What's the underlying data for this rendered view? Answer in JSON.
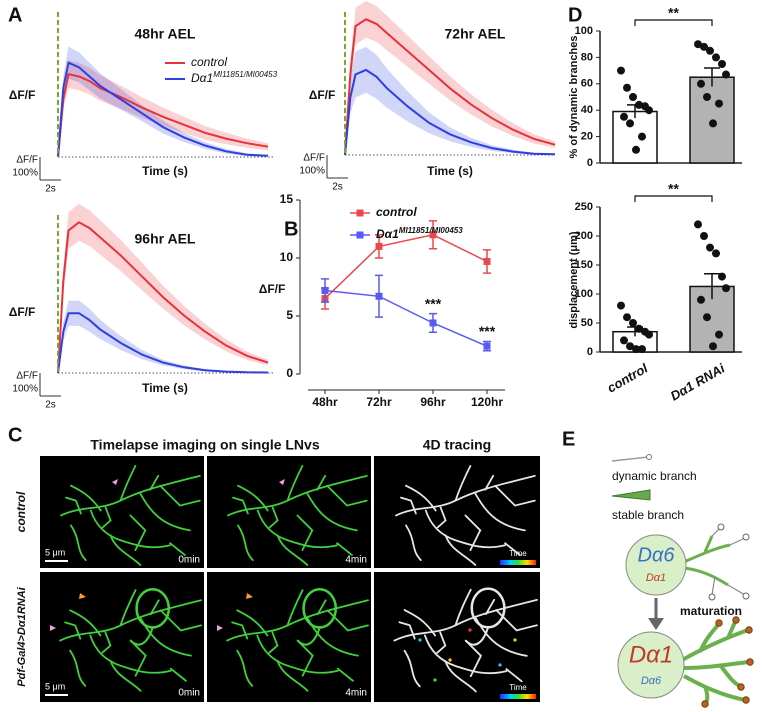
{
  "panel_labels": [
    "A",
    "B",
    "C",
    "D",
    "E"
  ],
  "chart_data": [
    {
      "type": "line",
      "title": "48hr AEL",
      "y_label": "ΔF/F",
      "x_label": "Time (s)",
      "x": [
        0,
        0.5,
        1,
        2,
        3,
        4,
        6,
        8,
        10,
        12,
        14,
        16,
        18,
        20
      ],
      "series": [
        {
          "name": "control",
          "color": "#e8313a",
          "values": [
            0,
            250,
            360,
            350,
            330,
            300,
            260,
            215,
            175,
            140,
            105,
            80,
            60,
            45
          ],
          "error": [
            0,
            40,
            60,
            60,
            58,
            55,
            50,
            45,
            40,
            35,
            30,
            25,
            20,
            15
          ]
        },
        {
          "name": "Dα1",
          "name_superscript": "MI11851/MI00453",
          "color": "#2f3fe0",
          "values": [
            0,
            300,
            410,
            390,
            350,
            310,
            250,
            190,
            130,
            85,
            50,
            25,
            10,
            5
          ],
          "error": [
            0,
            50,
            70,
            65,
            60,
            55,
            45,
            35,
            28,
            20,
            14,
            10,
            6,
            4
          ]
        }
      ],
      "scalebar_label": "ΔF/F",
      "scalebar_y": {
        "value": 100,
        "label": "100%"
      },
      "scalebar_x": {
        "value": 2,
        "label": "2s"
      },
      "legend": "upper right"
    },
    {
      "type": "line",
      "title": "72hr AEL",
      "y_label": "ΔF/F",
      "x_label": "Time (s)",
      "x": [
        0,
        0.5,
        1,
        2,
        3,
        4,
        6,
        8,
        10,
        12,
        14,
        16,
        18,
        20
      ],
      "series": [
        {
          "name": "control",
          "color": "#e8313a",
          "values": [
            0,
            350,
            560,
            590,
            570,
            530,
            450,
            370,
            290,
            220,
            160,
            110,
            70,
            45
          ],
          "error": [
            0,
            60,
            80,
            80,
            78,
            75,
            68,
            60,
            52,
            44,
            36,
            28,
            20,
            14
          ]
        },
        {
          "name": "Dα1",
          "name_superscript": "MI11851/MI00453",
          "color": "#2f3fe0",
          "values": [
            0,
            250,
            350,
            370,
            340,
            290,
            210,
            140,
            90,
            55,
            30,
            15,
            5,
            3
          ],
          "error": [
            0,
            70,
            100,
            100,
            95,
            85,
            65,
            45,
            30,
            20,
            12,
            8,
            4,
            3
          ]
        }
      ],
      "scalebar_label": "ΔF/F",
      "scalebar_y": {
        "value": 100,
        "label": "100%"
      },
      "scalebar_x": {
        "value": 2,
        "label": "2s"
      }
    },
    {
      "type": "line",
      "title": "96hr AEL",
      "y_label": "ΔF/F",
      "x_label": "Time (s)",
      "x": [
        0,
        0.5,
        1,
        2,
        3,
        4,
        6,
        8,
        10,
        12,
        14,
        16,
        18,
        20
      ],
      "series": [
        {
          "name": "control",
          "color": "#e8313a",
          "values": [
            0,
            400,
            620,
            655,
            630,
            590,
            510,
            420,
            330,
            250,
            180,
            120,
            75,
            45
          ],
          "error": [
            0,
            60,
            80,
            80,
            78,
            75,
            68,
            60,
            50,
            42,
            34,
            26,
            18,
            12
          ]
        },
        {
          "name": "Dα1",
          "name_superscript": "MI11851/MI00453",
          "color": "#2f3fe0",
          "values": [
            0,
            180,
            260,
            260,
            230,
            190,
            130,
            80,
            45,
            25,
            12,
            6,
            3,
            2
          ],
          "error": [
            0,
            40,
            55,
            55,
            50,
            42,
            30,
            20,
            12,
            8,
            5,
            3,
            2,
            1
          ]
        }
      ],
      "scalebar_label": "ΔF/F",
      "scalebar_y": {
        "value": 100,
        "label": "100%"
      },
      "scalebar_x": {
        "value": 2,
        "label": "2s"
      }
    },
    {
      "type": "line",
      "y_label": "ΔF/F",
      "categories": [
        "48hr",
        "72hr",
        "96hr",
        "120hr"
      ],
      "ylim": [
        0,
        15
      ],
      "yticks": [
        0,
        5,
        10,
        15
      ],
      "series": [
        {
          "name": "control",
          "color": "#e8494f",
          "values": [
            6.5,
            11,
            12,
            9.7
          ],
          "error": [
            0.9,
            1,
            1.2,
            1
          ]
        },
        {
          "name": "Dα1",
          "name_superscript": "MI11851/MI00453",
          "color": "#5a5af0",
          "values": [
            7.2,
            6.7,
            4.4,
            2.4
          ],
          "error": [
            1,
            1.8,
            0.8,
            0.4
          ]
        }
      ],
      "annotations": [
        {
          "text": "***",
          "category": "96hr"
        },
        {
          "text": "***",
          "category": "120hr"
        }
      ],
      "legend": "upper left"
    },
    {
      "type": "bar",
      "y_label": "% of dynamic branches",
      "categories": [
        null,
        null
      ],
      "values": [
        39,
        65
      ],
      "error": [
        5,
        7
      ],
      "colors": [
        "#ffffff",
        "#b3b3b3"
      ],
      "points": [
        [
          70,
          57,
          50,
          44,
          43,
          40,
          35,
          30,
          20,
          10
        ],
        [
          90,
          88,
          85,
          80,
          75,
          67,
          60,
          50,
          45,
          30
        ]
      ],
      "ylim": [
        0,
        100
      ],
      "yticks": [
        0,
        20,
        40,
        60,
        80,
        100
      ],
      "annotations": [
        {
          "text": "**"
        }
      ]
    },
    {
      "type": "bar",
      "y_label": "displacement (μm)",
      "categories": [
        "control",
        "Dα1 RNAi"
      ],
      "values": [
        35,
        113
      ],
      "error": [
        8,
        22
      ],
      "colors": [
        "#ffffff",
        "#b3b3b3"
      ],
      "points": [
        [
          80,
          60,
          50,
          40,
          35,
          30,
          20,
          10,
          5,
          5
        ],
        [
          220,
          200,
          180,
          170,
          130,
          110,
          90,
          60,
          30,
          10
        ]
      ],
      "ylim": [
        0,
        250
      ],
      "yticks": [
        0,
        50,
        100,
        150,
        200,
        250
      ],
      "annotations": [
        {
          "text": "**"
        }
      ]
    }
  ],
  "panel_c": {
    "title": "Timelapse imaging on single LNvs",
    "tracing_title": "4D tracing",
    "rows": [
      {
        "label": "control",
        "times": [
          "0min",
          "4min"
        ],
        "scale": "5 μm",
        "colorbar": "Time"
      },
      {
        "label": "Pdf-Gal4>Dα1RNAi",
        "times": [
          "0min",
          "4min"
        ],
        "scale": "5 μm",
        "colorbar": "Time"
      }
    ]
  },
  "panel_e": {
    "dynamic": "dynamic branch",
    "stable": "stable branch",
    "before": {
      "major": "Dα6",
      "minor": "Dα1"
    },
    "arrow": "maturation",
    "after": {
      "major": "Dα1",
      "minor": "Dα6"
    }
  }
}
